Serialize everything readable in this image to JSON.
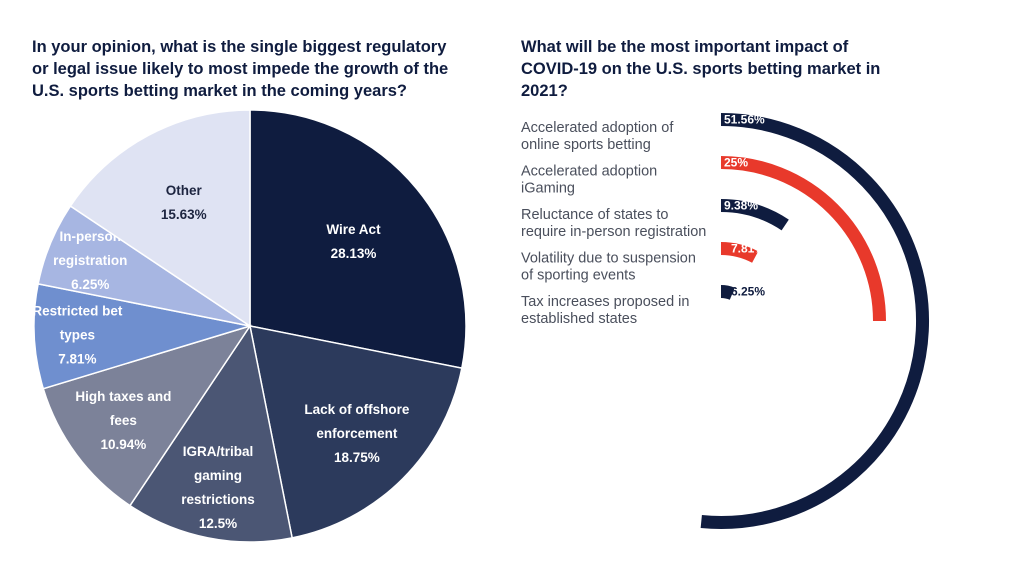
{
  "chart_data": [
    {
      "type": "pie",
      "title": "In your opinion, what is the single biggest regulatory\nor legal issue likely to most impede the growth of the\nU.S. sports betting market in the coming years?",
      "slices": [
        {
          "label": "Wire Act",
          "value": 28.13,
          "value_label": "28.13%",
          "color": "#0f1c3f",
          "text_color": "#ffffff"
        },
        {
          "label": "Lack of offshore enforcement",
          "value": 18.75,
          "value_label": "18.75%",
          "color": "#2c3a5c",
          "text_color": "#ffffff"
        },
        {
          "label": "IGRA/tribal gaming restrictions",
          "value": 12.5,
          "value_label": "12.5%",
          "color": "#4b5674",
          "text_color": "#ffffff"
        },
        {
          "label": "High taxes and fees",
          "value": 10.94,
          "value_label": "10.94%",
          "color": "#7c8299",
          "text_color": "#ffffff"
        },
        {
          "label": "Restricted bet types",
          "value": 7.81,
          "value_label": "7.81%",
          "color": "#6f8fcf",
          "text_color": "#ffffff"
        },
        {
          "label": "In-person registration",
          "value": 6.25,
          "value_label": "6.25%",
          "color": "#a7b6e2",
          "text_color": "#ffffff"
        },
        {
          "label": "Other",
          "value": 15.63,
          "value_label": "15.63%",
          "color": "#dfe3f3",
          "text_color": "#1d2540"
        }
      ]
    },
    {
      "type": "radial-bar",
      "title": "What will be the most important impact of\nCOVID-19 on the U.S. sports betting market in\n2021?",
      "bars": [
        {
          "label": "Accelerated adoption of online sports betting",
          "value": 51.56,
          "value_label": "51.56%",
          "color": "#0f1c3f",
          "label_lines": [
            "Accelerated adoption of",
            "online sports betting"
          ]
        },
        {
          "label": "Accelerated adoption iGaming",
          "value": 25,
          "value_label": "25%",
          "color": "#e8392b",
          "label_lines": [
            "Accelerated adoption",
            "iGaming"
          ]
        },
        {
          "label": "Reluctance of states to require in-person registration",
          "value": 9.38,
          "value_label": "9.38%",
          "color": "#0f1c3f",
          "label_lines": [
            "Reluctance of states to",
            "require in-person registration"
          ]
        },
        {
          "label": "Volatility due to suspension of sporting events",
          "value": 7.81,
          "value_label": "7.81%",
          "color": "#e8392b",
          "label_lines": [
            "Volatility due to suspension",
            "of sporting events"
          ]
        },
        {
          "label": "Tax increases proposed in established states",
          "value": 6.25,
          "value_label": "6.25%",
          "color": "#0f1c3f",
          "label_lines": [
            "Tax increases proposed in",
            "established states"
          ]
        }
      ]
    }
  ]
}
